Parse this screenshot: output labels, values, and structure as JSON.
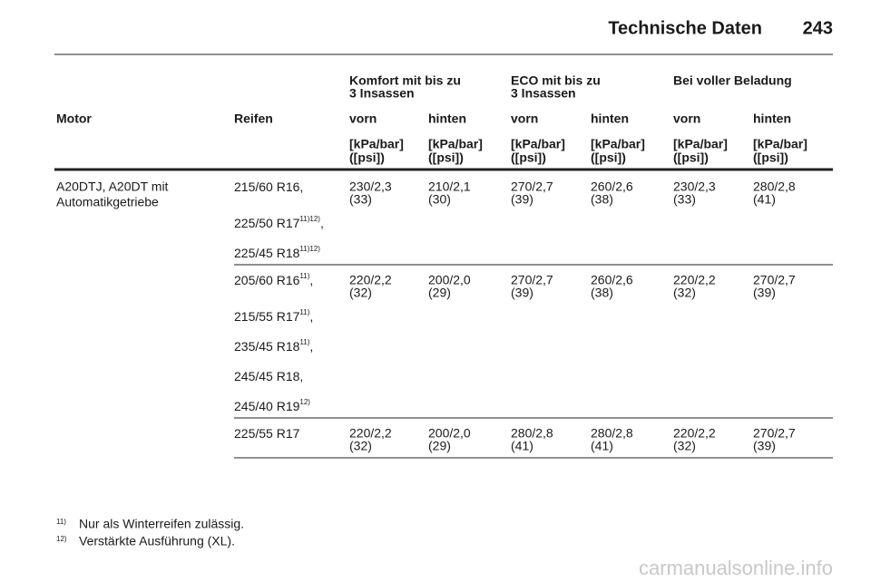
{
  "header": {
    "title": "Technische Daten",
    "page": "243"
  },
  "table": {
    "groups": [
      [
        "Komfort mit bis zu",
        "3 Insassen"
      ],
      [
        "ECO mit bis zu",
        "3 Insassen"
      ],
      [
        "Bei voller Beladung"
      ]
    ],
    "columns": [
      "Motor",
      "Reifen",
      "vorn",
      "hinten",
      "vorn",
      "hinten",
      "vorn",
      "hinten"
    ],
    "units": [
      [
        "[kPa/bar]",
        "([psi])"
      ],
      [
        "[kPa/bar]",
        "([psi])"
      ],
      [
        "[kPa/bar]",
        "([psi])"
      ],
      [
        "[kPa/bar]",
        "([psi])"
      ],
      [
        "[kPa/bar]",
        "([psi])"
      ],
      [
        "[kPa/bar]",
        "([psi])"
      ]
    ],
    "motor": [
      "A20DTJ, A20DT mit",
      "Automatikgetriebe"
    ],
    "rows": [
      {
        "tires": [
          {
            "text": "215/60 R16",
            "sep": ","
          },
          {
            "text": "225/50 R17",
            "note": "11)12)",
            "sep": ","
          },
          {
            "text": "225/45 R18",
            "note": "11)12)"
          }
        ],
        "values": [
          [
            "230/2,3",
            "(33)"
          ],
          [
            "210/2,1",
            "(30)"
          ],
          [
            "270/2,7",
            "(39)"
          ],
          [
            "260/2,6",
            "(38)"
          ],
          [
            "230/2,3",
            "(33)"
          ],
          [
            "280/2,8",
            "(41)"
          ]
        ]
      },
      {
        "tires": [
          {
            "text": "205/60 R16",
            "note": "11)",
            "sep": ","
          },
          {
            "text": "215/55 R17",
            "note": "11)",
            "sep": ","
          },
          {
            "text": "235/45 R18",
            "note": "11)",
            "sep": ","
          },
          {
            "text": "245/45 R18",
            "sep": ","
          },
          {
            "text": "245/40 R19",
            "note": "12)"
          }
        ],
        "values": [
          [
            "220/2,2",
            "(32)"
          ],
          [
            "200/2,0",
            "(29)"
          ],
          [
            "270/2,7",
            "(39)"
          ],
          [
            "260/2,6",
            "(38)"
          ],
          [
            "220/2,2",
            "(32)"
          ],
          [
            "270/2,7",
            "(39)"
          ]
        ]
      },
      {
        "tires": [
          {
            "text": "225/55 R17"
          }
        ],
        "values": [
          [
            "220/2,2",
            "(32)"
          ],
          [
            "200/2,0",
            "(29)"
          ],
          [
            "280/2,8",
            "(41)"
          ],
          [
            "280/2,8",
            "(41)"
          ],
          [
            "220/2,2",
            "(32)"
          ],
          [
            "270/2,7",
            "(39)"
          ]
        ]
      }
    ]
  },
  "footnotes": [
    {
      "mark": "11)",
      "text": "Nur als Winterreifen zulässig."
    },
    {
      "mark": "12)",
      "text": "Verstärkte Ausführung (XL)."
    }
  ],
  "watermark": "carmanualsonline.info"
}
